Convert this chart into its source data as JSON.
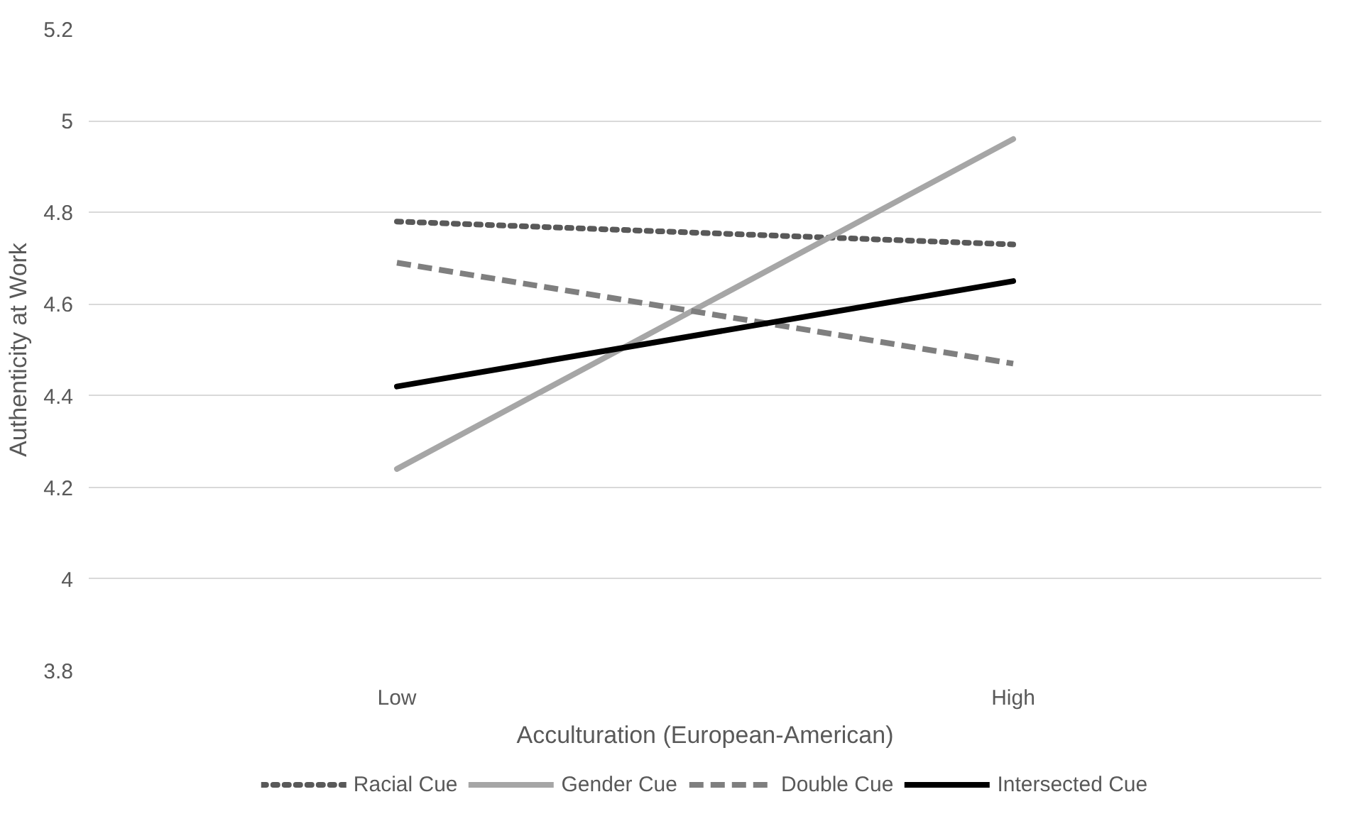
{
  "chart_data": {
    "type": "line",
    "xlabel": "Acculturation (European-American)",
    "ylabel": "Authenticity at Work",
    "categories": [
      "Low",
      "High"
    ],
    "series": [
      {
        "name": "Racial Cue",
        "color": "#595959",
        "line_style": "dotted",
        "values": [
          4.78,
          4.73
        ]
      },
      {
        "name": "Gender Cue",
        "color": "#a6a6a6",
        "line_style": "solid",
        "values": [
          4.24,
          4.96
        ]
      },
      {
        "name": "Double Cue",
        "color": "#7f7f7f",
        "line_style": "dashed",
        "values": [
          4.69,
          4.47
        ]
      },
      {
        "name": "Intersected Cue",
        "color": "#000000",
        "line_style": "solid",
        "values": [
          4.42,
          4.65
        ]
      }
    ],
    "ylim": [
      3.8,
      5.2
    ],
    "yticks": [
      3.8,
      4,
      4.2,
      4.4,
      4.6,
      4.8,
      5,
      5.2
    ],
    "grid": "y",
    "legend": "bottom",
    "marker": "none"
  }
}
